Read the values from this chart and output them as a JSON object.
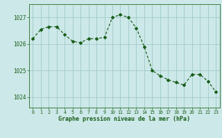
{
  "x": [
    0,
    1,
    2,
    3,
    4,
    5,
    6,
    7,
    8,
    9,
    10,
    11,
    12,
    13,
    14,
    15,
    16,
    17,
    18,
    19,
    20,
    21,
    22,
    23
  ],
  "y": [
    1026.2,
    1026.55,
    1026.65,
    1026.65,
    1026.35,
    1026.1,
    1026.05,
    1026.2,
    1026.2,
    1026.25,
    1027.0,
    1027.1,
    1027.0,
    1026.6,
    1025.9,
    1025.0,
    1024.8,
    1024.65,
    1024.55,
    1024.45,
    1024.85,
    1024.85,
    1024.6,
    1024.2
  ],
  "line_color": "#1a5e1a",
  "marker": "D",
  "marker_size": 2.0,
  "bg_color": "#cce8e8",
  "grid_color": "#a0c8c8",
  "xlabel": "Graphe pression niveau de la mer (hPa)",
  "xlabel_color": "#1a5e1a",
  "ylabel_ticks": [
    1024,
    1025,
    1026,
    1027
  ],
  "ylim": [
    1023.6,
    1027.5
  ],
  "xlim": [
    -0.5,
    23.5
  ],
  "tick_color": "#1a5e1a",
  "spine_color": "#3a7a3a"
}
